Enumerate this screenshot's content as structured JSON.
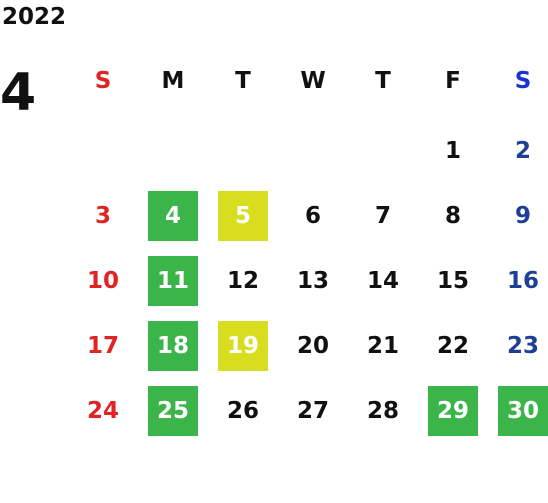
{
  "calendar": {
    "year": "2022",
    "month": "4",
    "weekdays": [
      "S",
      "M",
      "T",
      "W",
      "T",
      "F",
      "S"
    ],
    "weeks": [
      [
        null,
        null,
        null,
        null,
        null,
        "1",
        "2"
      ],
      [
        "3",
        "4",
        "5",
        "6",
        "7",
        "8",
        "9"
      ],
      [
        "10",
        "11",
        "12",
        "13",
        "14",
        "15",
        "16"
      ],
      [
        "17",
        "18",
        "19",
        "20",
        "21",
        "22",
        "23"
      ],
      [
        "24",
        "25",
        "26",
        "27",
        "28",
        "29",
        "30"
      ]
    ],
    "highlights": {
      "4": "green",
      "5": "yellow",
      "11": "green",
      "18": "green",
      "19": "yellow",
      "25": "green",
      "29": "green",
      "30": "green"
    }
  },
  "colors": {
    "sunday": "#e02424",
    "saturday_header": "#1a33d6",
    "saturday": "#1e3f96",
    "weekday": "#111111",
    "green": "#3bb54a",
    "yellow": "#d8de1f",
    "highlight_text": "#ffffff"
  }
}
